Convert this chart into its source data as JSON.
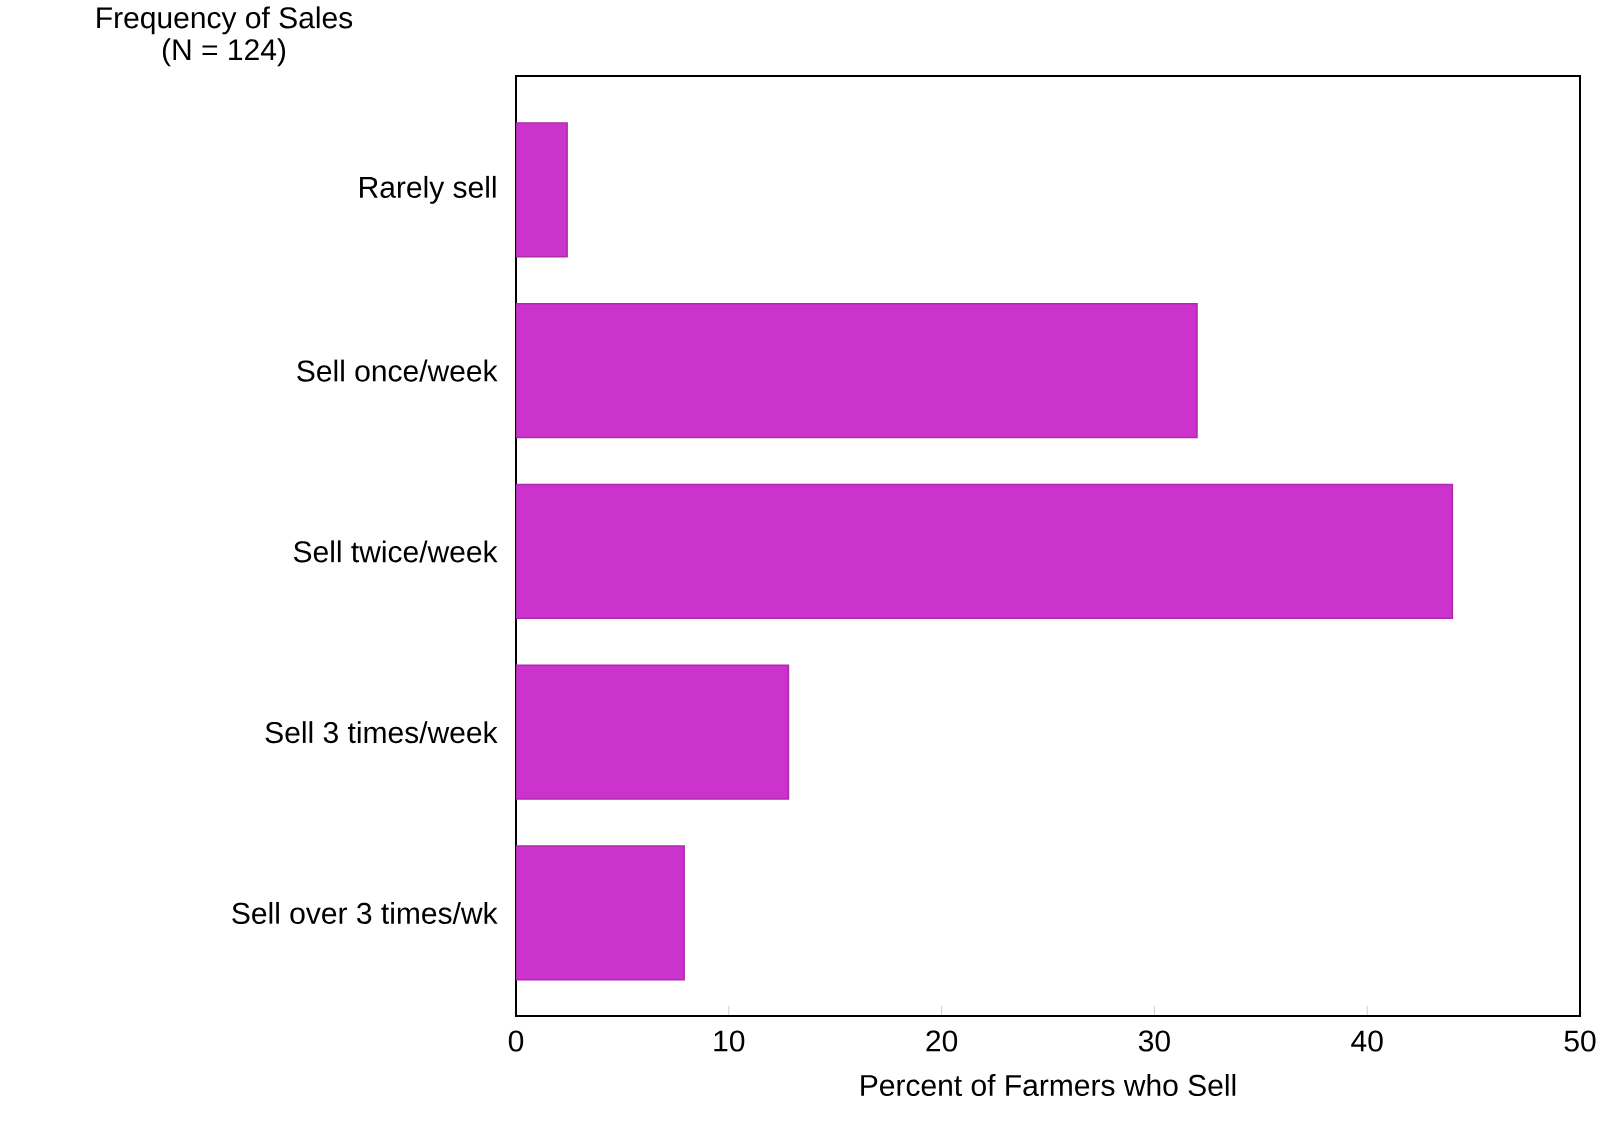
{
  "chart_data": {
    "type": "bar",
    "orientation": "horizontal",
    "title": "Frequency of Sales",
    "subtitle": "(N = 124)",
    "categories": [
      "Rarely sell",
      "Sell once/week",
      "Sell twice/week",
      "Sell 3 times/week",
      "Sell over 3 times/wk"
    ],
    "values": [
      2.4,
      32.0,
      44.0,
      12.8,
      7.9
    ],
    "color": "#cc33cc",
    "xlabel": "Percent of Farmers who Sell",
    "xlim": [
      0,
      50
    ],
    "xticks": [
      0,
      10,
      20,
      30,
      40,
      50
    ],
    "grid": false
  }
}
